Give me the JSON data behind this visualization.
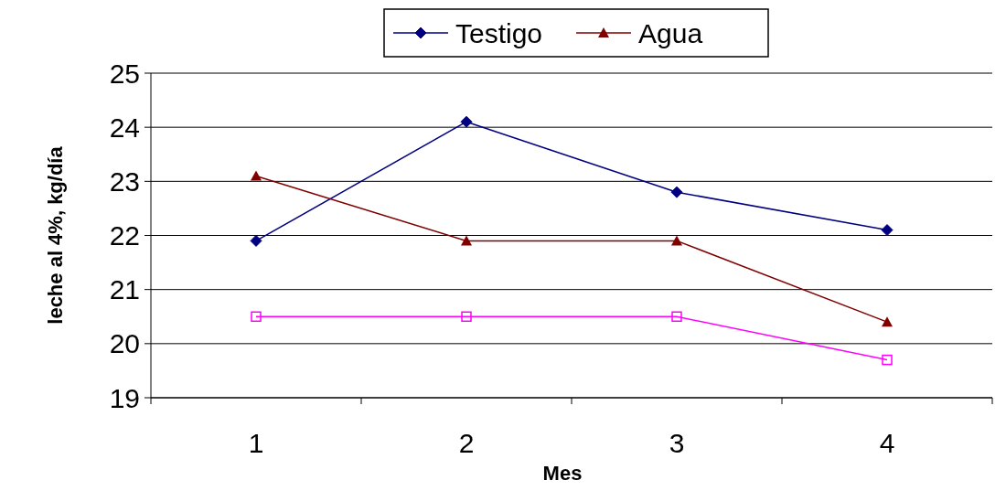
{
  "chart_data": {
    "type": "line",
    "xlabel": "Mes",
    "ylabel": "leche al 4%, kg/día",
    "categories": [
      "1",
      "2",
      "3",
      "4"
    ],
    "series": [
      {
        "name": "Testigo",
        "color": "#000080",
        "marker": "diamond",
        "values": [
          21.9,
          24.1,
          22.8,
          22.1
        ]
      },
      {
        "color": "#ff00ff",
        "marker": "square",
        "values": [
          20.5,
          20.5,
          20.5,
          19.7
        ]
      },
      {
        "name": "Agua",
        "color": "#800000",
        "marker": "triangle",
        "values": [
          23.1,
          21.9,
          21.9,
          20.4
        ]
      }
    ],
    "ylim": [
      19,
      25
    ],
    "yticks": [
      19,
      20,
      21,
      22,
      23,
      24,
      25
    ],
    "grid": "y",
    "legend": "top",
    "line_style": "solid"
  }
}
